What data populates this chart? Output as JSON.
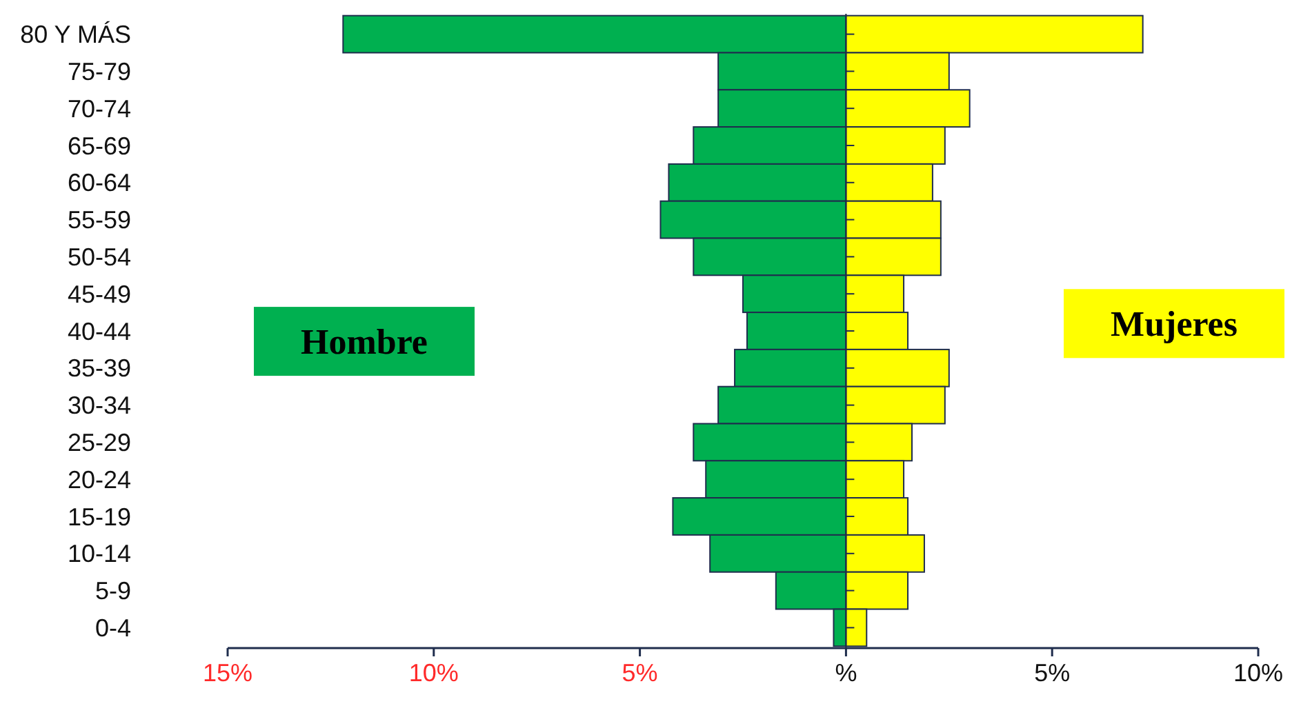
{
  "chart_data": {
    "type": "bar",
    "orientation": "horizontal",
    "stacked": true,
    "categories": [
      "80 Y MÁS",
      "75-79",
      "70-74",
      "65-69",
      "60-64",
      "55-59",
      "50-54",
      "45-49",
      "40-44",
      "35-39",
      "30-34",
      "25-29",
      "20-24",
      "15-19",
      "10-14",
      "5-9",
      "0-4"
    ],
    "series": [
      {
        "name": "Hombre",
        "color": "#00b050",
        "values": [
          -12.2,
          -3.1,
          -3.1,
          -3.7,
          -4.3,
          -4.5,
          -3.7,
          -2.5,
          -2.4,
          -2.7,
          -3.1,
          -3.7,
          -3.4,
          -4.2,
          -3.3,
          -1.7,
          -0.3
        ]
      },
      {
        "name": "Mujeres",
        "color": "#ffff00",
        "values": [
          7.2,
          2.5,
          3.0,
          2.4,
          2.1,
          2.3,
          2.3,
          1.4,
          1.5,
          2.5,
          2.4,
          1.6,
          1.4,
          1.5,
          1.9,
          1.5,
          0.5
        ]
      }
    ],
    "xlim": [
      -15,
      10
    ],
    "xticks": [
      {
        "value": -15,
        "label": "15%"
      },
      {
        "value": -10,
        "label": "10%"
      },
      {
        "value": -5,
        "label": "5%"
      },
      {
        "value": 0,
        "label": "%"
      },
      {
        "value": 5,
        "label": "5%"
      },
      {
        "value": 10,
        "label": "10%"
      }
    ],
    "grid": false
  }
}
